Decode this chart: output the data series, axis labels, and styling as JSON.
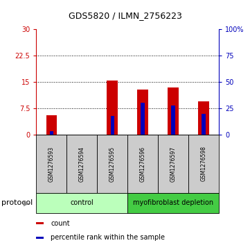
{
  "title": "GDS5820 / ILMN_2756223",
  "samples": [
    "GSM1276593",
    "GSM1276594",
    "GSM1276595",
    "GSM1276596",
    "GSM1276597",
    "GSM1276598"
  ],
  "count_values": [
    5.5,
    0.05,
    15.3,
    12.8,
    13.5,
    9.5
  ],
  "percentile_values": [
    3.5,
    0.3,
    18.0,
    30.0,
    28.0,
    20.0
  ],
  "bar_color": "#cc0000",
  "blue_color": "#0000bb",
  "bar_width": 0.35,
  "blue_bar_width": 0.12,
  "ylim_left": [
    0,
    30
  ],
  "ylim_right": [
    0,
    100
  ],
  "yticks_left": [
    0,
    7.5,
    15,
    22.5,
    30
  ],
  "ytick_labels_left": [
    "0",
    "7.5",
    "15",
    "22.5",
    "30"
  ],
  "yticks_right": [
    0,
    25,
    50,
    75,
    100
  ],
  "ytick_labels_right": [
    "0",
    "25",
    "50",
    "75",
    "100%"
  ],
  "protocol_groups": [
    {
      "label": "control",
      "indices": [
        0,
        1,
        2
      ],
      "color": "#bbffbb"
    },
    {
      "label": "myofibroblast depletion",
      "indices": [
        3,
        4,
        5
      ],
      "color": "#44cc44"
    }
  ],
  "legend_items": [
    {
      "color": "#cc0000",
      "label": "count"
    },
    {
      "color": "#0000bb",
      "label": "percentile rank within the sample"
    }
  ],
  "left_axis_color": "#cc0000",
  "right_axis_color": "#0000bb",
  "sample_box_color": "#cccccc",
  "title_fontsize": 9,
  "tick_fontsize": 7,
  "sample_fontsize": 5.5,
  "protocol_fontsize": 7,
  "legend_fontsize": 7,
  "protocol_label_fontsize": 8
}
